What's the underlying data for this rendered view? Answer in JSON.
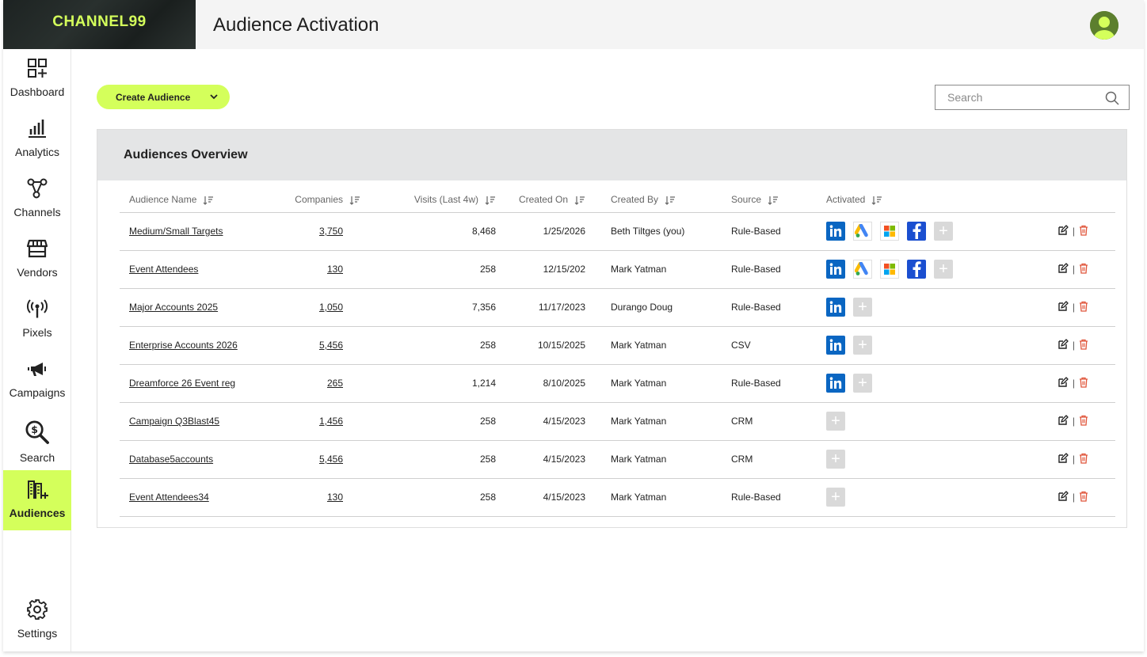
{
  "header": {
    "logo_text": "CHANNEL99",
    "title": "Audience Activation"
  },
  "sidebar": {
    "items": [
      {
        "label": "Dashboard",
        "icon": "dashboard-icon"
      },
      {
        "label": "Analytics",
        "icon": "bar-chart-icon"
      },
      {
        "label": "Channels",
        "icon": "channels-icon"
      },
      {
        "label": "Vendors",
        "icon": "storefront-icon"
      },
      {
        "label": "Pixels",
        "icon": "broadcast-icon"
      },
      {
        "label": "Campaigns",
        "icon": "megaphone-icon"
      },
      {
        "label": "Search",
        "icon": "dollar-search-icon"
      },
      {
        "label": "Audiences",
        "icon": "audiences-icon",
        "active": true
      }
    ],
    "settings_label": "Settings"
  },
  "toolbar": {
    "create_label": "Create Audience",
    "search_placeholder": "Search"
  },
  "panel": {
    "title": "Audiences Overview",
    "columns": [
      "Audience Name",
      "Companies",
      "Visits (Last 4w)",
      "Created On",
      "Created By",
      "Source",
      "Activated"
    ],
    "rows": [
      {
        "name": "Medium/Small Targets",
        "companies": "3,750",
        "visits": "8,468",
        "created_on": "1/25/2026",
        "created_by": "Beth Tiltges (you)",
        "source": "Rule-Based",
        "activated": [
          "linkedin",
          "google-ads",
          "microsoft",
          "facebook"
        ]
      },
      {
        "name": "Event Attendees",
        "companies": "130",
        "visits": "258",
        "created_on": "12/15/202",
        "created_by": "Mark Yatman",
        "source": "Rule-Based",
        "activated": [
          "linkedin",
          "google-ads",
          "microsoft",
          "facebook"
        ]
      },
      {
        "name": "Major Accounts 2025",
        "companies": "1,050",
        "visits": "7,356",
        "created_on": "11/17/2023",
        "created_by": "Durango Doug",
        "source": "Rule-Based",
        "activated": [
          "linkedin"
        ]
      },
      {
        "name": "Enterprise Accounts 2026",
        "companies": "5,456",
        "visits": "258",
        "created_on": "10/15/2025",
        "created_by": "Mark Yatman",
        "source": "CSV",
        "activated": [
          "linkedin"
        ]
      },
      {
        "name": "Dreamforce 26 Event reg",
        "companies": "265",
        "visits": "1,214",
        "created_on": "8/10/2025",
        "created_by": "Mark Yatman",
        "source": "Rule-Based",
        "activated": [
          "linkedin"
        ]
      },
      {
        "name": "Campaign Q3Blast45",
        "companies": "1,456",
        "visits": "258",
        "created_on": "4/15/2023",
        "created_by": "Mark Yatman",
        "source": "CRM",
        "activated": []
      },
      {
        "name": "Database5accounts",
        "companies": "5,456",
        "visits": "258",
        "created_on": "4/15/2023",
        "created_by": "Mark Yatman",
        "source": "CRM",
        "activated": []
      },
      {
        "name": "Event Attendees34",
        "companies": "130",
        "visits": "258",
        "created_on": "4/15/2023",
        "created_by": "Mark Yatman",
        "source": "Rule-Based",
        "activated": []
      }
    ]
  },
  "colors": {
    "accent": "#d4ff5b",
    "linkedin": "#0a66c2",
    "facebook": "#1b4fd0",
    "delete": "#e0553a"
  }
}
